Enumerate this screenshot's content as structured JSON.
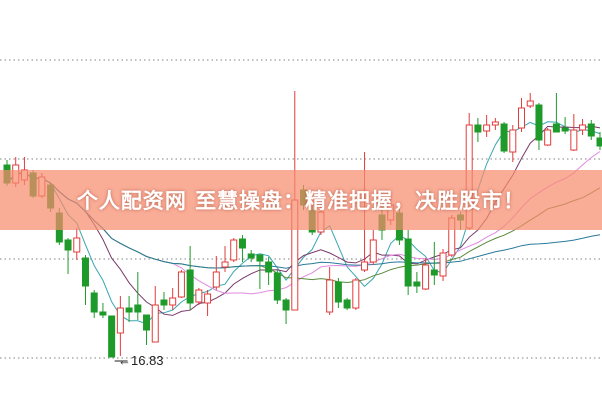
{
  "banner": {
    "text": "个人配资网 至慧操盘：精准把握，决胜股市！"
  },
  "chart_data": {
    "type": "candlestick",
    "title": "",
    "xlabel": "",
    "ylabel": "",
    "ylim": [
      15.95,
      23.97
    ],
    "grid": {
      "horizontal": true,
      "style": "dotted",
      "levels": [
        22.77,
        20.79,
        18.79,
        16.81
      ]
    },
    "low_annotation": {
      "label": "←16.83",
      "value": 16.83,
      "index": 12
    },
    "colors": {
      "up": "#e23b3b",
      "down": "#1e9a2a",
      "ma": [
        "#3aa6b0",
        "#7a3a6a",
        "#e08ae0",
        "#5a8a3a",
        "#2a7a9a"
      ]
    },
    "moving_averages": [
      5,
      10,
      20,
      30,
      60
    ],
    "ohlc": [
      [
        20.67,
        20.77,
        20.25,
        20.31
      ],
      [
        20.31,
        20.83,
        20.23,
        20.67
      ],
      [
        20.37,
        20.83,
        20.27,
        20.57
      ],
      [
        20.51,
        20.57,
        20.01,
        20.05
      ],
      [
        20.05,
        20.51,
        20.01,
        20.43
      ],
      [
        20.27,
        20.33,
        19.73,
        19.81
      ],
      [
        19.71,
        19.81,
        19.07,
        19.13
      ],
      [
        19.17,
        19.21,
        18.49,
        18.97
      ],
      [
        18.93,
        19.41,
        18.77,
        19.21
      ],
      [
        18.81,
        18.87,
        17.87,
        18.25
      ],
      [
        18.11,
        18.17,
        17.61,
        17.73
      ],
      [
        17.73,
        17.91,
        17.61,
        17.67
      ],
      [
        17.65,
        17.65,
        16.83,
        16.83
      ],
      [
        17.31,
        18.05,
        16.85,
        17.81
      ],
      [
        17.81,
        18.05,
        17.53,
        17.73
      ],
      [
        17.87,
        18.53,
        17.57,
        17.73
      ],
      [
        17.67,
        17.67,
        17.07,
        17.37
      ],
      [
        17.13,
        18.25,
        17.13,
        17.87
      ],
      [
        17.97,
        18.13,
        17.77,
        17.87
      ],
      [
        17.87,
        18.21,
        17.77,
        18.01
      ],
      [
        18.03,
        18.57,
        18.01,
        18.53
      ],
      [
        18.57,
        19.05,
        17.77,
        17.91
      ],
      [
        17.93,
        18.21,
        17.87,
        18.17
      ],
      [
        17.91,
        18.17,
        17.65,
        18.09
      ],
      [
        18.23,
        18.85,
        18.17,
        18.53
      ],
      [
        18.63,
        19.05,
        18.53,
        18.73
      ],
      [
        18.77,
        19.21,
        18.73,
        19.17
      ],
      [
        19.19,
        19.27,
        18.73,
        19.01
      ],
      [
        18.89,
        18.97,
        18.73,
        18.81
      ],
      [
        18.87,
        18.87,
        18.19,
        18.75
      ],
      [
        18.73,
        18.83,
        18.27,
        18.53
      ],
      [
        18.51,
        18.57,
        17.89,
        17.97
      ],
      [
        17.97,
        18.01,
        17.49,
        17.77
      ],
      [
        17.77,
        22.15,
        17.77,
        19.97
      ],
      [
        20.17,
        20.27,
        19.77,
        19.87
      ],
      [
        19.77,
        19.87,
        19.27,
        19.33
      ],
      [
        19.33,
        19.87,
        19.27,
        19.73
      ],
      [
        17.73,
        18.63,
        17.67,
        18.37
      ],
      [
        18.33,
        18.41,
        17.81,
        17.93
      ],
      [
        17.97,
        18.01,
        17.77,
        17.81
      ],
      [
        17.81,
        18.41,
        17.77,
        18.37
      ],
      [
        18.57,
        20.93,
        18.53,
        18.73
      ],
      [
        18.73,
        19.37,
        18.67,
        19.17
      ],
      [
        19.67,
        19.87,
        19.17,
        19.37
      ],
      [
        19.57,
        20.07,
        19.47,
        19.87
      ],
      [
        19.71,
        19.87,
        19.07,
        19.17
      ],
      [
        19.19,
        19.37,
        18.07,
        18.25
      ],
      [
        18.33,
        18.53,
        18.11,
        18.25
      ],
      [
        18.19,
        18.81,
        18.17,
        18.67
      ],
      [
        18.57,
        19.13,
        18.27,
        18.47
      ],
      [
        18.45,
        18.99,
        18.35,
        18.91
      ],
      [
        18.87,
        19.67,
        18.83,
        19.61
      ],
      [
        19.67,
        19.73,
        19.37,
        19.57
      ],
      [
        19.41,
        21.71,
        19.37,
        21.47
      ],
      [
        21.47,
        21.61,
        21.13,
        21.33
      ],
      [
        21.35,
        21.67,
        21.23,
        21.47
      ],
      [
        21.47,
        21.61,
        21.37,
        21.53
      ],
      [
        21.49,
        21.53,
        20.91,
        20.95
      ],
      [
        20.93,
        21.47,
        20.73,
        21.37
      ],
      [
        21.41,
        22.01,
        21.33,
        21.81
      ],
      [
        21.85,
        22.11,
        21.81,
        21.95
      ],
      [
        21.87,
        21.91,
        20.97,
        21.17
      ],
      [
        21.07,
        21.41,
        21.05,
        21.37
      ],
      [
        21.49,
        22.11,
        21.33,
        21.33
      ],
      [
        21.41,
        21.63,
        21.29,
        21.35
      ],
      [
        20.97,
        21.69,
        20.95,
        21.37
      ],
      [
        21.37,
        21.59,
        21.27,
        21.47
      ],
      [
        21.49,
        21.57,
        21.17,
        21.25
      ],
      [
        21.21,
        21.33,
        20.97,
        21.05
      ]
    ]
  }
}
